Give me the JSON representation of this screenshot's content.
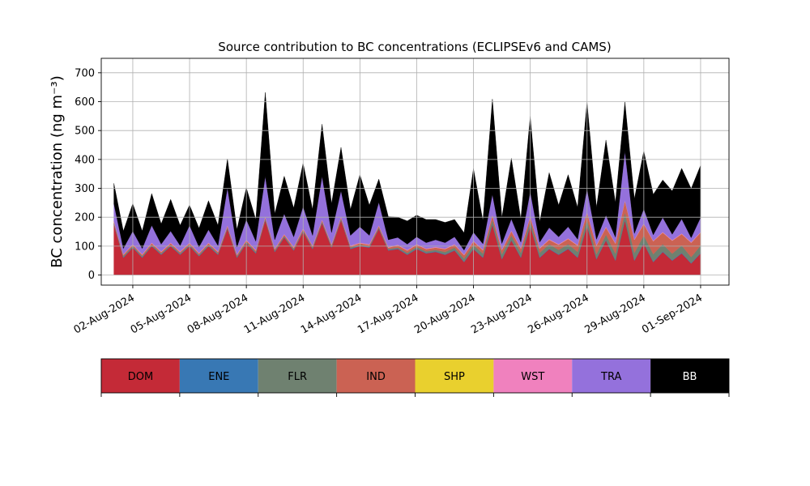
{
  "chart_data": {
    "type": "area",
    "stacked": true,
    "title": "Source contribution to BC concentrations (ECLIPSEv6 and CAMS)",
    "ylabel": "BC concentration (ng m⁻³)",
    "ylim": [
      -35,
      750
    ],
    "yticks": [
      0,
      100,
      200,
      300,
      400,
      500,
      600,
      700
    ],
    "xlim": [
      "2024-07-31T08:00",
      "2024-09-02T12:00"
    ],
    "xticks": [
      "2024-08-02",
      "2024-08-05",
      "2024-08-08",
      "2024-08-11",
      "2024-08-14",
      "2024-08-17",
      "2024-08-20",
      "2024-08-23",
      "2024-08-26",
      "2024-08-29",
      "2024-09-01"
    ],
    "xtick_labels": [
      "02-Aug-2024",
      "05-Aug-2024",
      "08-Aug-2024",
      "11-Aug-2024",
      "14-Aug-2024",
      "17-Aug-2024",
      "20-Aug-2024",
      "23-Aug-2024",
      "26-Aug-2024",
      "29-Aug-2024",
      "01-Sep-2024"
    ],
    "grid": true,
    "x": [
      "2024-08-01T00:00",
      "2024-08-01T12:00",
      "2024-08-02T00:00",
      "2024-08-02T12:00",
      "2024-08-03T00:00",
      "2024-08-03T12:00",
      "2024-08-04T00:00",
      "2024-08-04T12:00",
      "2024-08-05T00:00",
      "2024-08-05T12:00",
      "2024-08-06T00:00",
      "2024-08-06T12:00",
      "2024-08-07T00:00",
      "2024-08-07T12:00",
      "2024-08-08T00:00",
      "2024-08-08T12:00",
      "2024-08-09T00:00",
      "2024-08-09T12:00",
      "2024-08-10T00:00",
      "2024-08-10T12:00",
      "2024-08-11T00:00",
      "2024-08-11T12:00",
      "2024-08-12T00:00",
      "2024-08-12T12:00",
      "2024-08-13T00:00",
      "2024-08-13T12:00",
      "2024-08-14T00:00",
      "2024-08-14T12:00",
      "2024-08-15T00:00",
      "2024-08-15T12:00",
      "2024-08-16T00:00",
      "2024-08-16T12:00",
      "2024-08-17T00:00",
      "2024-08-17T12:00",
      "2024-08-18T00:00",
      "2024-08-18T12:00",
      "2024-08-19T00:00",
      "2024-08-19T12:00",
      "2024-08-20T00:00",
      "2024-08-20T12:00",
      "2024-08-21T00:00",
      "2024-08-21T12:00",
      "2024-08-22T00:00",
      "2024-08-22T12:00",
      "2024-08-23T00:00",
      "2024-08-23T12:00",
      "2024-08-24T00:00",
      "2024-08-24T12:00",
      "2024-08-25T00:00",
      "2024-08-25T12:00",
      "2024-08-26T00:00",
      "2024-08-26T12:00",
      "2024-08-27T00:00",
      "2024-08-27T12:00",
      "2024-08-28T00:00",
      "2024-08-28T12:00",
      "2024-08-29T00:00",
      "2024-08-29T12:00",
      "2024-08-30T00:00",
      "2024-08-30T12:00",
      "2024-08-31T00:00",
      "2024-08-31T12:00",
      "2024-09-01T00:00"
    ],
    "series": [
      {
        "name": "DOM",
        "color": "#c42a37",
        "values": [
          175,
          60,
          95,
          60,
          100,
          70,
          100,
          70,
          100,
          65,
          100,
          70,
          160,
          60,
          110,
          75,
          190,
          80,
          130,
          85,
          150,
          90,
          180,
          95,
          190,
          90,
          100,
          95,
          160,
          85,
          90,
          70,
          90,
          75,
          80,
          70,
          85,
          45,
          90,
          60,
          175,
          55,
          120,
          60,
          170,
          60,
          90,
          70,
          90,
          60,
          170,
          55,
          120,
          50,
          190,
          50,
          110,
          45,
          80,
          50,
          75,
          40,
          75
        ]
      },
      {
        "name": "ENE",
        "color": "#3878b4",
        "values": [
          2,
          2,
          2,
          2,
          2,
          2,
          2,
          2,
          2,
          2,
          2,
          2,
          2,
          2,
          2,
          2,
          2,
          2,
          2,
          2,
          2,
          2,
          2,
          2,
          2,
          2,
          2,
          2,
          2,
          2,
          2,
          2,
          2,
          2,
          2,
          2,
          2,
          2,
          2,
          2,
          2,
          2,
          2,
          2,
          2,
          2,
          2,
          2,
          2,
          2,
          2,
          2,
          2,
          2,
          2,
          2,
          2,
          2,
          2,
          2,
          2,
          2,
          2
        ]
      },
      {
        "name": "FLR",
        "color": "#6f8170",
        "values": [
          3,
          3,
          3,
          3,
          3,
          3,
          3,
          3,
          3,
          3,
          3,
          3,
          3,
          3,
          3,
          3,
          3,
          3,
          3,
          3,
          3,
          3,
          3,
          3,
          3,
          3,
          3,
          3,
          3,
          3,
          3,
          5,
          5,
          5,
          5,
          8,
          8,
          10,
          12,
          12,
          15,
          15,
          15,
          15,
          15,
          15,
          15,
          15,
          15,
          18,
          20,
          15,
          18,
          22,
          25,
          25,
          25,
          25,
          25,
          22,
          25,
          20,
          25
        ]
      },
      {
        "name": "IND",
        "color": "#cb6253",
        "values": [
          5,
          5,
          5,
          5,
          5,
          5,
          5,
          5,
          5,
          5,
          5,
          5,
          5,
          5,
          5,
          5,
          5,
          5,
          5,
          5,
          5,
          5,
          5,
          5,
          5,
          5,
          5,
          5,
          5,
          5,
          8,
          8,
          8,
          8,
          8,
          10,
          10,
          12,
          12,
          12,
          15,
          15,
          15,
          15,
          15,
          15,
          15,
          18,
          18,
          22,
          25,
          30,
          25,
          35,
          40,
          45,
          40,
          45,
          40,
          45,
          40,
          50,
          45
        ]
      },
      {
        "name": "SHP",
        "color": "#e9d02e",
        "values": [
          0,
          0,
          0,
          0,
          0,
          0,
          0,
          0,
          0,
          0,
          0,
          0,
          0,
          0,
          0,
          0,
          0,
          0,
          0,
          0,
          0,
          0,
          0,
          0,
          0,
          0,
          0,
          0,
          0,
          0,
          0,
          0,
          0,
          0,
          0,
          0,
          0,
          0,
          0,
          0,
          0,
          0,
          0,
          0,
          0,
          0,
          0,
          0,
          0,
          0,
          0,
          0,
          0,
          0,
          0,
          0,
          0,
          0,
          0,
          0,
          0,
          0,
          0
        ]
      },
      {
        "name": "WST",
        "color": "#f081be",
        "values": [
          2,
          2,
          2,
          2,
          2,
          2,
          2,
          2,
          2,
          2,
          2,
          2,
          2,
          2,
          2,
          2,
          2,
          2,
          2,
          2,
          2,
          2,
          2,
          2,
          2,
          2,
          2,
          2,
          2,
          2,
          2,
          2,
          2,
          2,
          2,
          2,
          2,
          2,
          2,
          2,
          2,
          2,
          2,
          2,
          2,
          2,
          2,
          2,
          2,
          2,
          2,
          2,
          2,
          2,
          2,
          2,
          2,
          2,
          2,
          2,
          2,
          2,
          2
        ]
      },
      {
        "name": "TRA",
        "color": "#9471dc",
        "values": [
          60,
          20,
          45,
          20,
          60,
          25,
          40,
          20,
          60,
          20,
          45,
          20,
          130,
          25,
          70,
          30,
          140,
          30,
          70,
          35,
          75,
          35,
          150,
          40,
          90,
          35,
          55,
          30,
          80,
          25,
          25,
          20,
          25,
          20,
          25,
          20,
          25,
          15,
          30,
          20,
          70,
          20,
          40,
          20,
          85,
          20,
          40,
          25,
          40,
          20,
          80,
          20,
          40,
          20,
          170,
          20,
          50,
          20,
          50,
          20,
          50,
          15,
          50
        ]
      },
      {
        "name": "BB",
        "color": "#000000",
        "values": [
          70,
          60,
          95,
          60,
          110,
          70,
          110,
          70,
          70,
          65,
          100,
          70,
          100,
          60,
          110,
          75,
          290,
          90,
          130,
          100,
          150,
          90,
          180,
          100,
          150,
          90,
          180,
          105,
          80,
          80,
          70,
          80,
          75,
          80,
          70,
          70,
          60,
          60,
          220,
          80,
          330,
          90,
          210,
          80,
          260,
          70,
          190,
          110,
          180,
          110,
          300,
          110,
          260,
          120,
          170,
          120,
          200,
          140,
          130,
          150,
          175,
          170,
          180
        ]
      }
    ]
  },
  "legend": {
    "items": [
      {
        "label": "DOM",
        "color": "#c42a37",
        "text_color": "#000000"
      },
      {
        "label": "ENE",
        "color": "#3878b4",
        "text_color": "#000000"
      },
      {
        "label": "FLR",
        "color": "#6f8170",
        "text_color": "#000000"
      },
      {
        "label": "IND",
        "color": "#cb6253",
        "text_color": "#000000"
      },
      {
        "label": "SHP",
        "color": "#e9d02e",
        "text_color": "#000000"
      },
      {
        "label": "WST",
        "color": "#f081be",
        "text_color": "#000000"
      },
      {
        "label": "TRA",
        "color": "#9471dc",
        "text_color": "#000000"
      },
      {
        "label": "BB",
        "color": "#000000",
        "text_color": "#ffffff"
      }
    ]
  }
}
